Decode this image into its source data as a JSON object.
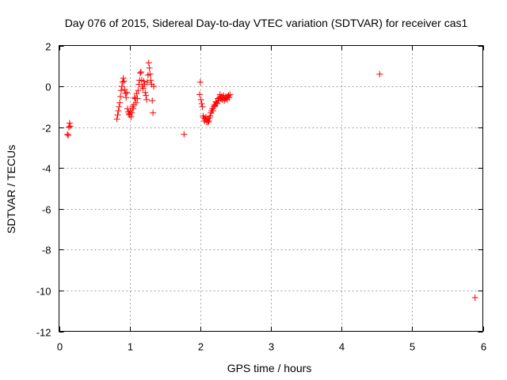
{
  "chart_data": {
    "type": "scatter",
    "title": "Day 076 of 2015, Sidereal Day-to-day VTEC variation (SDTVAR) for receiver cas1",
    "xlabel": "GPS time / hours",
    "ylabel": "SDTVAR / TECUs",
    "xlim": [
      0,
      6
    ],
    "ylim": [
      -12,
      2
    ],
    "xticks": [
      0,
      1,
      2,
      3,
      4,
      5,
      6
    ],
    "yticks": [
      -12,
      -10,
      -8,
      -6,
      -4,
      -2,
      0,
      2
    ],
    "xtick_labels": [
      "0",
      "1",
      "2",
      "3",
      "4",
      "5",
      "6"
    ],
    "ytick_labels": [
      "-12",
      "-10",
      "-8",
      "-6",
      "-4",
      "-2",
      "0",
      "2"
    ],
    "grid": true,
    "marker": "+",
    "color": "#ff0000",
    "series": [
      {
        "name": "SDTVAR",
        "points": [
          [
            0.12,
            -2.35
          ],
          [
            0.13,
            -2.4
          ],
          [
            0.14,
            -2.0
          ],
          [
            0.15,
            -1.8
          ],
          [
            0.16,
            -1.95
          ],
          [
            0.82,
            -1.6
          ],
          [
            0.83,
            -1.4
          ],
          [
            0.84,
            -1.2
          ],
          [
            0.85,
            -1.0
          ],
          [
            0.86,
            -0.8
          ],
          [
            0.87,
            -0.5
          ],
          [
            0.88,
            -0.2
          ],
          [
            0.89,
            0.0
          ],
          [
            0.9,
            0.2
          ],
          [
            0.91,
            0.4
          ],
          [
            0.92,
            0.25
          ],
          [
            0.93,
            -0.15
          ],
          [
            0.94,
            -0.35
          ],
          [
            0.95,
            -0.55
          ],
          [
            0.96,
            -0.3
          ],
          [
            0.97,
            -1.1
          ],
          [
            0.98,
            -1.25
          ],
          [
            0.99,
            -1.35
          ],
          [
            1.0,
            -1.4
          ],
          [
            1.01,
            -1.2
          ],
          [
            1.02,
            -1.5
          ],
          [
            1.03,
            -1.3
          ],
          [
            1.04,
            -1.0
          ],
          [
            1.05,
            -1.1
          ],
          [
            1.06,
            -0.9
          ],
          [
            1.07,
            -0.55
          ],
          [
            1.08,
            -0.6
          ],
          [
            1.09,
            -0.8
          ],
          [
            1.1,
            -0.35
          ],
          [
            1.11,
            -0.6
          ],
          [
            1.12,
            -0.2
          ],
          [
            1.13,
            0.1
          ],
          [
            1.14,
            0.3
          ],
          [
            1.15,
            0.65
          ],
          [
            1.16,
            0.7
          ],
          [
            1.17,
            0.3
          ],
          [
            1.18,
            0.0
          ],
          [
            1.19,
            -0.1
          ],
          [
            1.2,
            0.25
          ],
          [
            1.21,
            0.1
          ],
          [
            1.22,
            -0.3
          ],
          [
            1.23,
            -0.45
          ],
          [
            1.24,
            -0.65
          ],
          [
            1.25,
            0.2
          ],
          [
            1.26,
            0.55
          ],
          [
            1.27,
            1.15
          ],
          [
            1.28,
            0.9
          ],
          [
            1.29,
            0.6
          ],
          [
            1.3,
            0.3
          ],
          [
            1.31,
            0.1
          ],
          [
            1.32,
            -0.7
          ],
          [
            1.33,
            -1.3
          ],
          [
            1.34,
            0.0
          ],
          [
            1.77,
            -2.35
          ],
          [
            1.99,
            -0.4
          ],
          [
            2.0,
            0.2
          ],
          [
            2.01,
            -0.65
          ],
          [
            2.02,
            -0.85
          ],
          [
            2.03,
            -1.0
          ],
          [
            2.04,
            -1.45
          ],
          [
            2.05,
            -1.55
          ],
          [
            2.06,
            -1.7
          ],
          [
            2.07,
            -1.6
          ],
          [
            2.08,
            -1.5
          ],
          [
            2.09,
            -1.75
          ],
          [
            2.1,
            -1.6
          ],
          [
            2.11,
            -1.75
          ],
          [
            2.12,
            -1.7
          ],
          [
            2.13,
            -1.55
          ],
          [
            2.14,
            -1.45
          ],
          [
            2.15,
            -1.3
          ],
          [
            2.16,
            -1.2
          ],
          [
            2.17,
            -1.1
          ],
          [
            2.18,
            -1.2
          ],
          [
            2.19,
            -1.0
          ],
          [
            2.2,
            -0.9
          ],
          [
            2.21,
            -0.95
          ],
          [
            2.22,
            -0.75
          ],
          [
            2.23,
            -0.8
          ],
          [
            2.24,
            -0.85
          ],
          [
            2.25,
            -0.6
          ],
          [
            2.26,
            -0.7
          ],
          [
            2.27,
            -0.55
          ],
          [
            2.28,
            -0.4
          ],
          [
            2.29,
            -0.6
          ],
          [
            2.3,
            -0.5
          ],
          [
            2.31,
            -0.65
          ],
          [
            2.32,
            -0.55
          ],
          [
            2.33,
            -0.45
          ],
          [
            2.34,
            -0.7
          ],
          [
            2.35,
            -0.6
          ],
          [
            2.36,
            -0.5
          ],
          [
            2.37,
            -0.55
          ],
          [
            2.38,
            -0.65
          ],
          [
            2.39,
            -0.5
          ],
          [
            2.4,
            -0.45
          ],
          [
            2.41,
            -0.55
          ],
          [
            2.42,
            -0.4
          ],
          [
            4.54,
            0.6
          ],
          [
            5.89,
            -10.35
          ]
        ]
      }
    ]
  }
}
